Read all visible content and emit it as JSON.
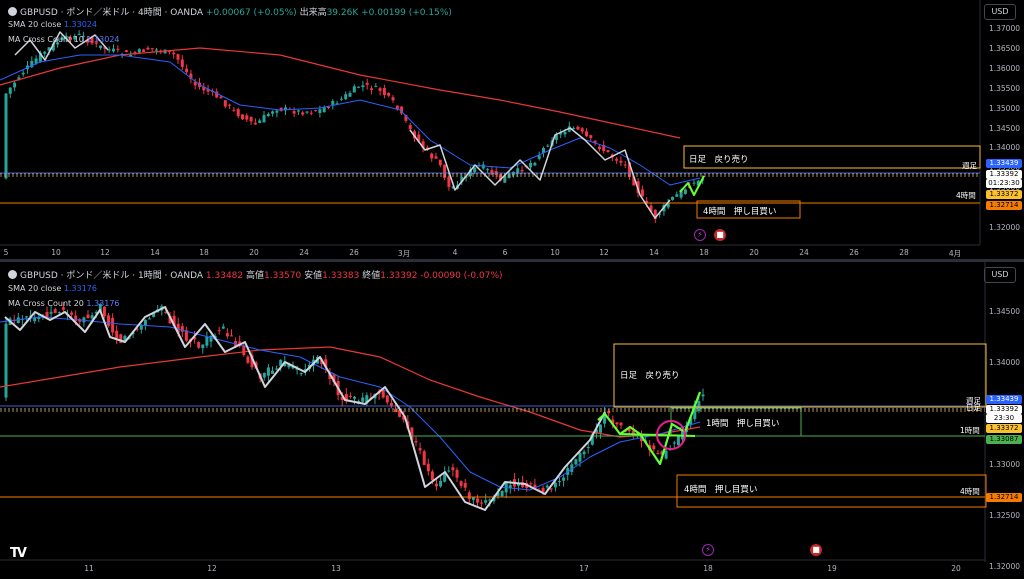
{
  "top": {
    "symbol": "GBPUSD · ポンド／米ドル · 4時間 · OANDA",
    "change": "+0.00067 (+0.05%)",
    "volume_label": "出来高",
    "volume": "39.26K",
    "change2": "+0.00199 (+0.15%)",
    "sma_label": "SMA 20 close",
    "sma_value": "1.33024",
    "macross_label": "MA Cross Count 10",
    "macross_value": "1.33024",
    "currency": "USD",
    "y_ticks": [
      "1.37000",
      "1.36500",
      "1.36000",
      "1.35500",
      "1.35000",
      "1.34500",
      "1.34000",
      "1.33500",
      "1.33000",
      "1.32500",
      "1.32000"
    ],
    "x_ticks": [
      "5",
      "10",
      "12",
      "14",
      "18",
      "20",
      "24",
      "26",
      "3月",
      "4",
      "6",
      "10",
      "12",
      "14",
      "18",
      "20",
      "24",
      "26",
      "28",
      "4月"
    ],
    "price_labels": {
      "ma_orange": "1.33439",
      "close": "1.33392",
      "countdown": "01:23:30",
      "yellow": "1.33372",
      "low": "1.32714"
    },
    "line_labels": {
      "weekly": "週足",
      "h4": "4時間"
    },
    "annotations": {
      "daily_sell": "日足　戻り売り",
      "h4_buy": "4時間　押し目買い"
    }
  },
  "bottom": {
    "symbol": "GBPUSD · ポンド／米ドル · 1時間 · OANDA",
    "open": "1.33482",
    "high_label": "高値",
    "high": "1.33570",
    "low_label": "安値",
    "low": "1.33383",
    "close_label": "終値",
    "close": "1.33392",
    "change": "-0.00090 (-0.07%)",
    "sma_label": "SMA 20 close",
    "sma_value": "1.33176",
    "macross_label": "MA Cross Count 20",
    "macross_value": "1.33176",
    "currency": "USD",
    "y_ticks": [
      "1.34500",
      "1.34000",
      "1.33500",
      "1.33000",
      "1.32500",
      "1.32000"
    ],
    "x_ticks": [
      "11",
      "12",
      "13",
      "17",
      "18",
      "19",
      "20"
    ],
    "price_labels": {
      "ma_orange": "1.33439",
      "close": "1.33392",
      "countdown": "23:30",
      "yellow": "1.33372",
      "green": "1.33087",
      "low": "1.32714"
    },
    "line_labels": {
      "weekly": "週足",
      "daily": "日足",
      "h1": "1時間",
      "h4": "4時間"
    },
    "annotations": {
      "daily_sell": "日足　戻り売り",
      "h1_buy": "1時間　押し目買い",
      "h4_buy": "4時間　押し目買い"
    }
  },
  "colors": {
    "up": "#26a69a",
    "down": "#f23645",
    "ma_red": "#e53935",
    "ma_blue": "#2962ff",
    "orange": "#f57c00",
    "yellow": "#fbc02d",
    "green_box": "#4caf50",
    "swing": "#d1d4dc",
    "pattern": "#66ff33",
    "circle": "#e91e8c"
  },
  "logo": "TV"
}
